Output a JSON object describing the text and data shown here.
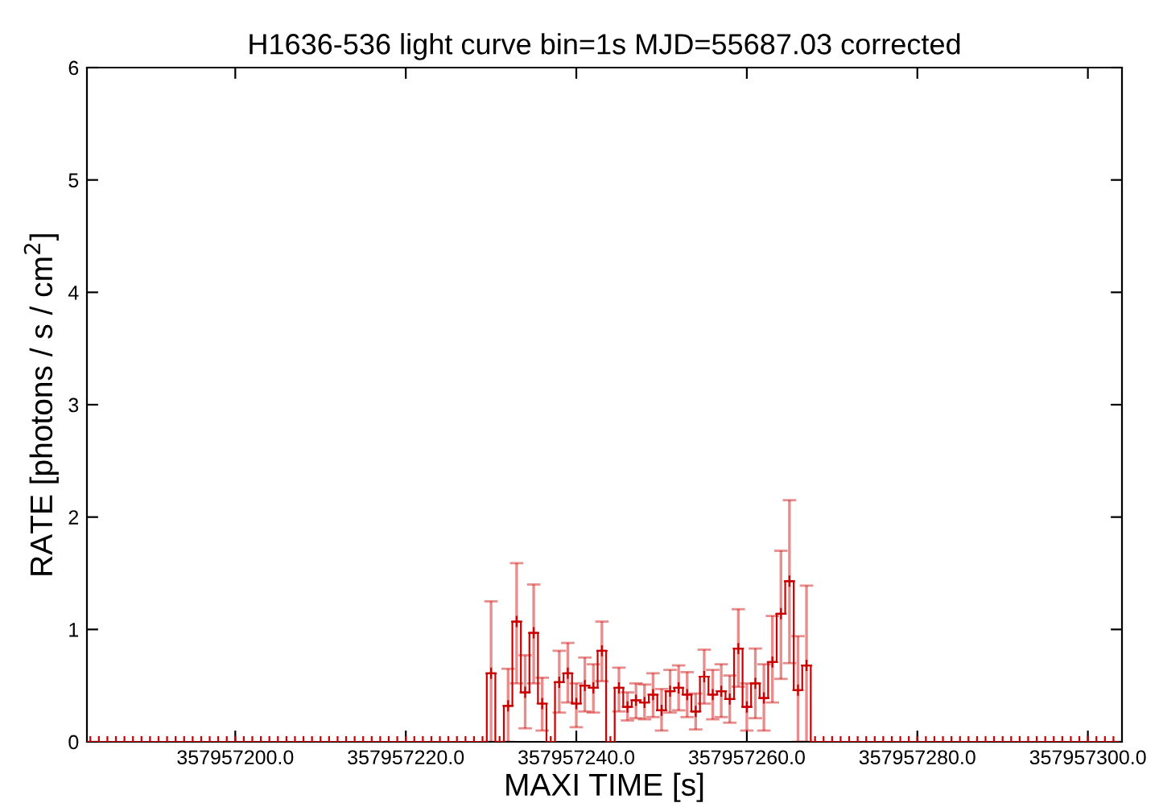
{
  "chart_data": {
    "type": "step",
    "title": "H1636-536 light curve bin=1s MJD=55687.03 corrected",
    "xlabel": "MAXI TIME [s]",
    "ylabel": "RATE [photons / s / cm$^{2}$]",
    "x": [
      357957183,
      357957184,
      357957185,
      357957186,
      357957187,
      357957188,
      357957189,
      357957190,
      357957191,
      357957192,
      357957193,
      357957194,
      357957195,
      357957196,
      357957197,
      357957198,
      357957199,
      357957200,
      357957201,
      357957202,
      357957203,
      357957204,
      357957205,
      357957206,
      357957207,
      357957208,
      357957209,
      357957210,
      357957211,
      357957212,
      357957213,
      357957214,
      357957215,
      357957216,
      357957217,
      357957218,
      357957219,
      357957220,
      357957221,
      357957222,
      357957223,
      357957224,
      357957225,
      357957226,
      357957227,
      357957228,
      357957229,
      357957230,
      357957231,
      357957232,
      357957233,
      357957234,
      357957235,
      357957236,
      357957237,
      357957238,
      357957239,
      357957240,
      357957241,
      357957242,
      357957243,
      357957244,
      357957245,
      357957246,
      357957247,
      357957248,
      357957249,
      357957250,
      357957251,
      357957252,
      357957253,
      357957254,
      357957255,
      357957256,
      357957257,
      357957258,
      357957259,
      357957260,
      357957261,
      357957262,
      357957263,
      357957264,
      357957265,
      357957266,
      357957267,
      357957268,
      357957269,
      357957270,
      357957271,
      357957272,
      357957273,
      357957274,
      357957275,
      357957276,
      357957277,
      357957278,
      357957279,
      357957280,
      357957281,
      357957282,
      357957283,
      357957284,
      357957285,
      357957286,
      357957287,
      357957288,
      357957289,
      357957290,
      357957291,
      357957292,
      357957293,
      357957294,
      357957295,
      357957296,
      357957297,
      357957298,
      357957299,
      357957300,
      357957301,
      357957302,
      357957303
    ],
    "values": [
      0,
      0,
      0,
      0,
      0,
      0,
      0,
      0,
      0,
      0,
      0,
      0,
      0,
      0,
      0,
      0,
      0,
      0,
      0,
      0,
      0,
      0,
      0,
      0,
      0,
      0,
      0,
      0,
      0,
      0,
      0,
      0,
      0,
      0,
      0,
      0,
      0,
      0,
      0,
      0,
      0,
      0,
      0,
      0,
      0,
      0,
      0,
      0.61,
      0,
      0.32,
      1.07,
      0.44,
      0.97,
      0.34,
      0,
      0.53,
      0.61,
      0.34,
      0.5,
      0.48,
      0.81,
      0,
      0.48,
      0.31,
      0.37,
      0.35,
      0.42,
      0.28,
      0.45,
      0.48,
      0.42,
      0.27,
      0.58,
      0.42,
      0.45,
      0.38,
      0.83,
      0.31,
      0.52,
      0.39,
      0.71,
      1.14,
      1.43,
      0.46,
      0.68,
      0,
      0,
      0,
      0,
      0,
      0,
      0,
      0,
      0,
      0,
      0,
      0,
      0,
      0,
      0,
      0,
      0,
      0,
      0,
      0,
      0,
      0,
      0,
      0,
      0,
      0,
      0,
      0,
      0,
      0,
      0,
      0,
      0,
      0,
      0,
      0
    ],
    "errors": [
      null,
      null,
      null,
      null,
      null,
      null,
      null,
      null,
      null,
      null,
      null,
      null,
      null,
      null,
      null,
      null,
      null,
      null,
      null,
      null,
      null,
      null,
      null,
      null,
      null,
      null,
      null,
      null,
      null,
      null,
      null,
      null,
      null,
      null,
      null,
      null,
      null,
      null,
      null,
      null,
      null,
      null,
      null,
      null,
      null,
      null,
      null,
      [
        0,
        1.25
      ],
      null,
      [
        0,
        0.65
      ],
      [
        0.52,
        1.59
      ],
      [
        0.12,
        0.77
      ],
      [
        0.52,
        1.4
      ],
      [
        0.1,
        0.57
      ],
      null,
      [
        0.26,
        0.81
      ],
      [
        0.35,
        0.88
      ],
      [
        0.13,
        0.52
      ],
      [
        0.27,
        0.75
      ],
      [
        0.26,
        0.69
      ],
      [
        0.54,
        1.07
      ],
      null,
      [
        0.27,
        0.66
      ],
      [
        0.19,
        0.44
      ],
      [
        0.21,
        0.52
      ],
      [
        0.2,
        0.51
      ],
      [
        0.22,
        0.61
      ],
      [
        0.1,
        0.47
      ],
      [
        0.26,
        0.64
      ],
      [
        0.28,
        0.68
      ],
      [
        0.22,
        0.62
      ],
      [
        0.11,
        0.43
      ],
      [
        0.34,
        0.82
      ],
      [
        0.2,
        0.64
      ],
      [
        0.22,
        0.69
      ],
      [
        0.17,
        0.59
      ],
      [
        0.49,
        1.18
      ],
      [
        0.1,
        0.52
      ],
      [
        0.21,
        0.83
      ],
      [
        0.1,
        0.69
      ],
      [
        0.35,
        1.12
      ],
      [
        0.56,
        1.7
      ],
      [
        0.7,
        2.15
      ],
      [
        0,
        0.94
      ],
      [
        0,
        1.39
      ],
      null,
      null,
      null,
      null,
      null,
      null,
      null,
      null,
      null,
      null,
      null,
      null,
      null,
      null,
      null,
      null,
      null,
      null,
      null,
      null,
      null,
      null,
      null,
      null,
      null,
      null,
      null,
      null,
      null,
      null,
      null,
      null,
      null,
      null,
      null,
      null
    ],
    "color": "#cc0000",
    "marker": "cross",
    "xlim": [
      357957182.6,
      357957304
    ],
    "xticks": [
      {
        "value": 357957200,
        "label": "357957200.0"
      },
      {
        "value": 357957220,
        "label": "357957220.0"
      },
      {
        "value": 357957240,
        "label": "357957240.0"
      },
      {
        "value": 357957260,
        "label": "357957260.0"
      },
      {
        "value": 357957280,
        "label": "357957280.0"
      },
      {
        "value": 357957300,
        "label": "357957300.0"
      }
    ],
    "ylim": [
      0,
      6
    ],
    "yticks": [
      0,
      1,
      2,
      3,
      4,
      5,
      6
    ],
    "grid": false
  }
}
